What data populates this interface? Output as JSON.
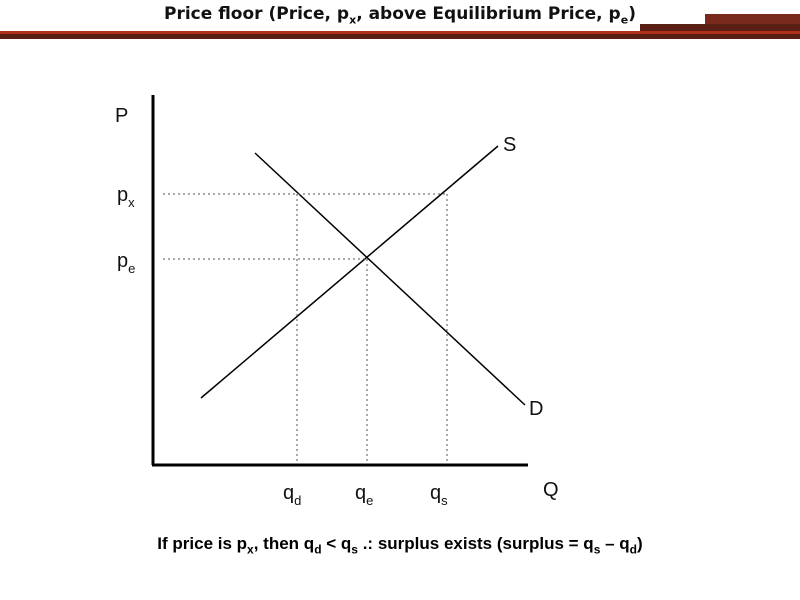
{
  "title": {
    "prefix": "Price floor (Price, p",
    "sub1": "x",
    "middle": ", above Equilibrium Price, p",
    "sub2": "e",
    "suffix": ")"
  },
  "diagram": {
    "price_axis_label": "P",
    "quantity_axis_label": "Q",
    "supply_label": "S",
    "demand_label": "D",
    "px": {
      "main": "p",
      "sub": "x"
    },
    "pe": {
      "main": "p",
      "sub": "e"
    },
    "qd": {
      "main": "q",
      "sub": "d"
    },
    "qe": {
      "main": "q",
      "sub": "e"
    },
    "qs": {
      "main": "q",
      "sub": "s"
    }
  },
  "caption": {
    "t1": "If price is p",
    "s1": "x",
    "t2": ", then q",
    "s2": "d",
    "t3": " < q",
    "s3": "s",
    "t4": " .: surplus exists (surplus = q",
    "s4": "s",
    "t5": " – q",
    "s5": "d",
    "t6": ")"
  }
}
